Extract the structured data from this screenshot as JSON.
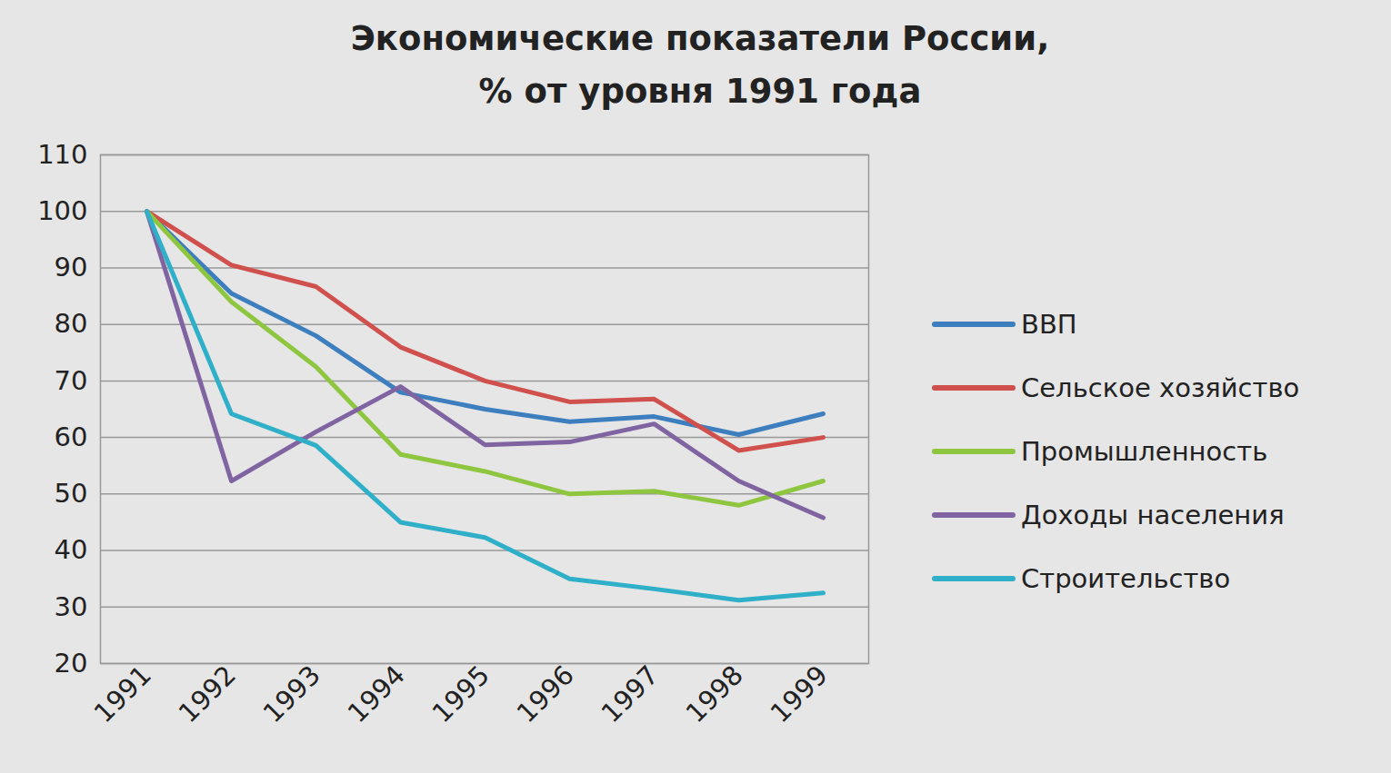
{
  "chart_data": {
    "type": "line",
    "title": "Экономические показатели России,",
    "subtitle": "% от уровня 1991 года",
    "categories": [
      "1991",
      "1992",
      "1993",
      "1994",
      "1995",
      "1996",
      "1997",
      "1998",
      "1999"
    ],
    "series": [
      {
        "name": "ВВП",
        "color": "#3d7ebf",
        "values": [
          100,
          85.5,
          78,
          68,
          65,
          62.8,
          63.7,
          60.5,
          64.2
        ]
      },
      {
        "name": "Сельское хозяйство",
        "color": "#d0504d",
        "values": [
          100,
          90.5,
          86.7,
          76,
          70,
          66.3,
          66.8,
          57.7,
          60
        ]
      },
      {
        "name": "Промышленность",
        "color": "#8ec63f",
        "values": [
          100,
          84,
          72.5,
          57,
          54,
          50,
          50.5,
          48,
          52.3
        ]
      },
      {
        "name": "Доходы населения",
        "color": "#8064a2",
        "values": [
          100,
          52.3,
          61,
          69,
          58.7,
          59.2,
          62.4,
          52.3,
          45.8
        ]
      },
      {
        "name": "Строительство",
        "color": "#2fb0c8",
        "values": [
          100,
          64.2,
          58.6,
          45,
          42.3,
          35,
          33.2,
          31.2,
          32.5
        ]
      }
    ],
    "ylim": [
      20,
      110
    ],
    "yticks": [
      20,
      30,
      40,
      50,
      60,
      70,
      80,
      90,
      100,
      110
    ],
    "grid": true,
    "legend": "right"
  }
}
